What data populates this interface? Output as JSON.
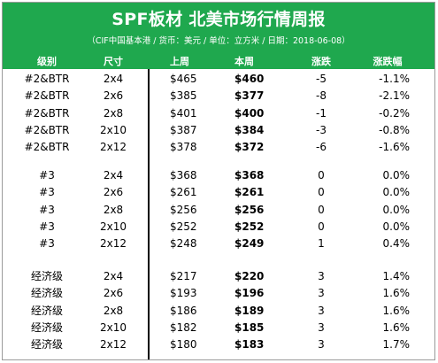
{
  "title": "SPF板材 北美市场行情周报",
  "subtitle": "（CIF中国基本港 / 货币：美元 / 单位：立方米 / 日期：2018-06-08）",
  "columns": [
    "级别",
    "尺寸",
    "上周",
    "本周",
    "涨跌",
    "涨跌幅"
  ],
  "colors": {
    "header_green": "#1fa84e",
    "header_text": "#ffffff"
  },
  "groups": [
    {
      "rows": [
        [
          "#2&BTR",
          "2x4",
          "$465",
          "$460",
          "-5",
          "-1.1%"
        ],
        [
          "#2&BTR",
          "2x6",
          "$385",
          "$377",
          "-8",
          "-2.1%"
        ],
        [
          "#2&BTR",
          "2x8",
          "$401",
          "$400",
          "-1",
          "-0.2%"
        ],
        [
          "#2&BTR",
          "2x10",
          "$387",
          "$384",
          "-3",
          "-0.8%"
        ],
        [
          "#2&BTR",
          "2x12",
          "$378",
          "$372",
          "-6",
          "-1.6%"
        ]
      ]
    },
    {
      "rows": [
        [
          "#3",
          "2x4",
          "$368",
          "$368",
          "0",
          "0.0%"
        ],
        [
          "#3",
          "2x6",
          "$261",
          "$261",
          "0",
          "0.0%"
        ],
        [
          "#3",
          "2x8",
          "$256",
          "$256",
          "0",
          "0.0%"
        ],
        [
          "#3",
          "2x10",
          "$252",
          "$252",
          "0",
          "0.0%"
        ],
        [
          "#3",
          "2x12",
          "$248",
          "$249",
          "1",
          "0.4%"
        ]
      ]
    },
    {
      "rows": [
        [
          "经济级",
          "2x4",
          "$217",
          "$220",
          "3",
          "1.4%"
        ],
        [
          "经济级",
          "2x6",
          "$193",
          "$196",
          "3",
          "1.6%"
        ],
        [
          "经济级",
          "2x8",
          "$186",
          "$189",
          "3",
          "1.6%"
        ],
        [
          "经济级",
          "2x10",
          "$182",
          "$185",
          "3",
          "1.6%"
        ],
        [
          "经济级",
          "2x12",
          "$180",
          "$183",
          "3",
          "1.7%"
        ]
      ]
    }
  ]
}
